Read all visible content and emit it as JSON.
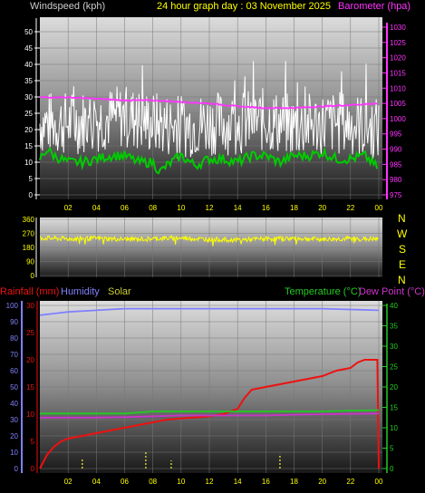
{
  "header": {
    "left": "Windspeed (kph)",
    "center": "24 hour graph day : 03 November 2025",
    "right": "Barometer (hpa)"
  },
  "legend_bottom": {
    "rainfall": "Rainfall (mm)",
    "humidity": "Humidity",
    "solar": "Solar",
    "temperature": "Temperature (°C)",
    "dewpoint": "Dew Point (°C)"
  },
  "compass": [
    "N",
    "W",
    "S",
    "E",
    "N"
  ],
  "colors": {
    "wind": "#ffffff",
    "wind_avg": "#00cc00",
    "barometer": "#ff33ff",
    "direction": "#ffff00",
    "rain": "#ee1111",
    "humidity": "#8080ff",
    "solar": "#cccc33",
    "temperature": "#22cc22",
    "dewpoint": "#cc33cc",
    "header_left": "#cccccc",
    "header_center": "#ffff00",
    "header_right": "#ff33ff"
  },
  "chart_data": [
    {
      "type": "line",
      "x_ticks": [
        "02",
        "04",
        "06",
        "08",
        "10",
        "12",
        "14",
        "16",
        "18",
        "20",
        "22",
        "00"
      ],
      "y_left_ticks": [
        "0",
        "5",
        "10",
        "15",
        "20",
        "25",
        "30",
        "35",
        "40",
        "45",
        "50"
      ],
      "y_right_ticks": [
        "975",
        "980",
        "985",
        "990",
        "995",
        "1000",
        "1005",
        "1010",
        "1015",
        "1020",
        "1025",
        "1030"
      ],
      "ylim_left": [
        0,
        50
      ],
      "ylim_right": [
        975,
        1030
      ],
      "series": [
        {
          "name": "Windspeed (kph)",
          "role": "wind_gust",
          "axis": "left",
          "x": [
            0,
            2,
            4,
            6,
            8,
            10,
            12,
            14,
            16,
            18,
            20,
            22,
            24
          ],
          "values": [
            22,
            22,
            23,
            24,
            22,
            21,
            22,
            22,
            23,
            21,
            22,
            22,
            20
          ]
        },
        {
          "name": "",
          "role": "wind_avg",
          "axis": "left",
          "x": [
            0,
            0.5,
            1,
            2,
            3,
            4,
            5,
            6,
            7,
            8,
            8.5,
            9,
            10,
            11,
            12,
            13,
            14,
            15,
            16,
            17,
            18,
            19,
            20,
            21,
            22,
            23,
            24
          ],
          "values": [
            11,
            14,
            12,
            10,
            10,
            11,
            12,
            12,
            10,
            10,
            7,
            9,
            12,
            9,
            11,
            11,
            10,
            12,
            12,
            10,
            12,
            12,
            13,
            11,
            11,
            12,
            8
          ]
        },
        {
          "name": "Barometer (hpa)",
          "role": "barometer",
          "axis": "right",
          "x": [
            0,
            2,
            4,
            6,
            8,
            10,
            12,
            14,
            16,
            18,
            20,
            22,
            24
          ],
          "values": [
            1007,
            1007,
            1006.5,
            1006,
            1006,
            1005.5,
            1005,
            1004,
            1003.5,
            1003.5,
            1004,
            1004.5,
            1005
          ]
        }
      ]
    },
    {
      "type": "line",
      "y_ticks": [
        "0",
        "90",
        "180",
        "270",
        "360"
      ],
      "ylim": [
        0,
        360
      ],
      "series": [
        {
          "name": "",
          "role": "wind_direction",
          "x": [
            0,
            2,
            4,
            6,
            8,
            10,
            12,
            14,
            16,
            18,
            20,
            22,
            24
          ],
          "values": [
            240,
            235,
            238,
            232,
            236,
            240,
            232,
            228,
            235,
            238,
            232,
            236,
            232
          ]
        }
      ]
    },
    {
      "type": "line",
      "x_ticks": [
        "02",
        "04",
        "06",
        "08",
        "10",
        "12",
        "14",
        "16",
        "18",
        "20",
        "22",
        "00"
      ],
      "y_left_ticks": [
        "0",
        "10",
        "20",
        "30",
        "40",
        "50",
        "60",
        "70",
        "80",
        "90",
        "100"
      ],
      "y_rain_ticks": [
        "0",
        "5",
        "10",
        "15",
        "20",
        "25",
        "30"
      ],
      "y_right_ticks": [
        "0",
        "5",
        "10",
        "15",
        "20",
        "25",
        "30",
        "35",
        "40"
      ],
      "ylim_left": [
        0,
        100
      ],
      "ylim_rain": [
        0,
        30
      ],
      "ylim_right": [
        0,
        40
      ],
      "series": [
        {
          "name": "Rainfall (mm)",
          "role": "rain",
          "axis": "rain",
          "x": [
            0,
            0.1,
            0.5,
            1,
            1.5,
            2,
            3,
            4,
            5,
            6,
            7,
            8,
            9,
            10,
            11,
            12,
            13,
            14,
            14.5,
            15,
            16,
            17,
            18,
            19,
            20,
            20.5,
            21,
            22,
            22.5,
            23,
            23.9,
            24
          ],
          "values": [
            0,
            0.5,
            2.5,
            4,
            5,
            5.5,
            6,
            6.5,
            7,
            7.5,
            8,
            8.5,
            9,
            9.2,
            9.4,
            9.6,
            10,
            11,
            13,
            14.5,
            15,
            15.5,
            16,
            16.5,
            17,
            17.5,
            18,
            18.5,
            19.5,
            20,
            20,
            0
          ]
        },
        {
          "name": "Humidity",
          "role": "humidity",
          "axis": "left",
          "x": [
            0,
            1,
            2,
            4,
            6,
            8,
            12,
            16,
            20,
            24
          ],
          "values": [
            94,
            95,
            96,
            97,
            98,
            98,
            98,
            98,
            98,
            97
          ]
        },
        {
          "name": "Temperature (°C)",
          "role": "temperature",
          "axis": "right",
          "x": [
            0,
            2,
            4,
            6,
            8,
            10,
            12,
            14,
            16,
            18,
            20,
            22,
            24
          ],
          "values": [
            13.5,
            13.5,
            13.5,
            13.5,
            14,
            14,
            14,
            14,
            14,
            14,
            14,
            14.2,
            14.3
          ]
        },
        {
          "name": "Dew Point (°C)",
          "role": "dewpoint",
          "axis": "right",
          "x": [
            0,
            2,
            4,
            6,
            8,
            10,
            12,
            14,
            16,
            18,
            20,
            22,
            24
          ],
          "values": [
            12.5,
            12.5,
            12.5,
            12.6,
            12.8,
            13,
            13,
            13,
            13,
            13.2,
            13.3,
            13.4,
            13.5
          ]
        },
        {
          "name": "Solar",
          "role": "solar",
          "axis": "left",
          "x": [
            3,
            7.5,
            9.3,
            17
          ],
          "values": [
            6,
            10,
            5,
            9
          ]
        }
      ]
    }
  ]
}
